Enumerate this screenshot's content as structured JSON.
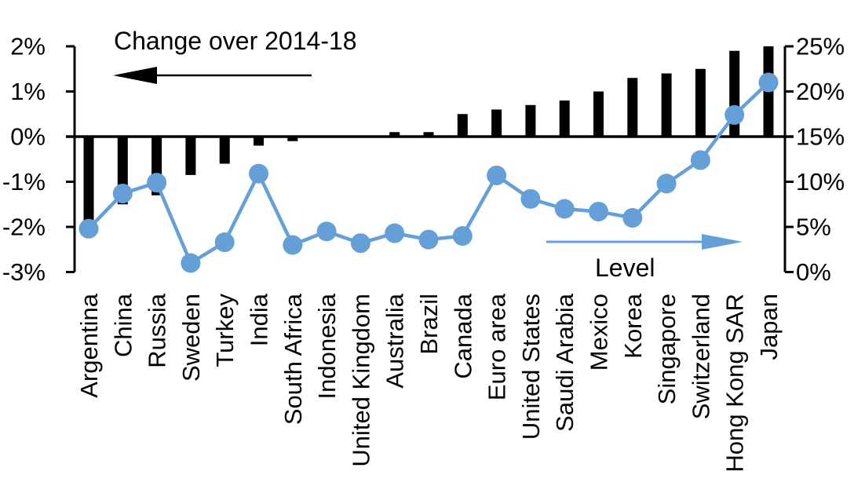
{
  "chart_data": {
    "type": "bar",
    "subtype": "combo-bar-line-dual-axis",
    "categories": [
      "Argentina",
      "China",
      "Russia",
      "Sweden",
      "Turkey",
      "India",
      "South Africa",
      "Indonesia",
      "United Kingdom",
      "Australia",
      "Brazil",
      "Canada",
      "Euro area",
      "United States",
      "Saudi Arabia",
      "Mexico",
      "Korea",
      "Singapore",
      "Switzerland",
      "Hong Kong SAR",
      "Japan"
    ],
    "series": [
      {
        "name": "Change over 2014-18",
        "type": "bar",
        "axis": "left",
        "color": "#000000",
        "values": [
          -1.9,
          -1.5,
          -1.3,
          -0.85,
          -0.6,
          -0.2,
          -0.1,
          0.0,
          0.0,
          0.1,
          0.1,
          0.5,
          0.6,
          0.7,
          0.8,
          1.0,
          1.3,
          1.4,
          1.5,
          1.9,
          2.0
        ]
      },
      {
        "name": "Level",
        "type": "line",
        "axis": "right",
        "color": "#64A0D7",
        "values": [
          4.8,
          8.7,
          9.9,
          1.0,
          3.3,
          10.9,
          3.0,
          4.5,
          3.2,
          4.3,
          3.6,
          4.0,
          10.7,
          8.1,
          7.0,
          6.7,
          6.0,
          9.8,
          12.4,
          17.4,
          21.0
        ]
      }
    ],
    "left_axis": {
      "min": -3,
      "max": 2,
      "tick_labels": [
        "2%",
        "1%",
        "0%",
        "-1%",
        "-2%",
        "-3%"
      ],
      "tick_values": [
        2,
        1,
        0,
        -1,
        -2,
        -3
      ]
    },
    "right_axis": {
      "min": 0,
      "max": 25,
      "tick_labels": [
        "25%",
        "20%",
        "15%",
        "10%",
        "5%",
        "0%"
      ],
      "tick_values": [
        25,
        20,
        15,
        10,
        5,
        0
      ]
    },
    "annotations": {
      "bar_label": "Change over 2014-18",
      "line_label": "Level"
    },
    "colors": {
      "bar": "#000000",
      "line": "#64A0D7",
      "axis": "#000000",
      "background": "#ffffff"
    },
    "legend_position": "in-plot-annotations",
    "grid": false
  }
}
